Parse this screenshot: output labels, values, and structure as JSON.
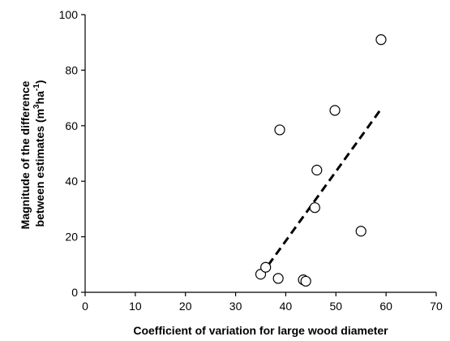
{
  "chart_data": {
    "type": "scatter",
    "title": "",
    "xlabel": "Coefficient of variation for large wood diameter",
    "ylabel_line1": "Magnitude of the difference",
    "ylabel_line2_prefix": "between estimates (m",
    "ylabel_sup1": "3",
    "ylabel_mid": "ha",
    "ylabel_sup2": "-1",
    "ylabel_suffix": ")",
    "xlim": [
      0,
      70
    ],
    "ylim": [
      0,
      100
    ],
    "x_ticks": [
      0,
      10,
      20,
      30,
      40,
      50,
      60,
      70
    ],
    "y_ticks": [
      0,
      20,
      40,
      60,
      80,
      100
    ],
    "grid": false,
    "series": [
      {
        "points": [
          {
            "x": 35.0,
            "y": 6.5
          },
          {
            "x": 36.0,
            "y": 9.0
          },
          {
            "x": 38.5,
            "y": 5.0
          },
          {
            "x": 38.8,
            "y": 58.5
          },
          {
            "x": 43.5,
            "y": 4.5
          },
          {
            "x": 44.0,
            "y": 4.0
          },
          {
            "x": 45.8,
            "y": 30.5
          },
          {
            "x": 46.2,
            "y": 44.0
          },
          {
            "x": 49.8,
            "y": 65.5
          },
          {
            "x": 55.0,
            "y": 22.0
          },
          {
            "x": 59.0,
            "y": 91.0
          }
        ]
      }
    ],
    "trendline": {
      "x": [
        35.0,
        59.0
      ],
      "y": [
        6.0,
        66.0
      ],
      "style": "dashed"
    }
  }
}
